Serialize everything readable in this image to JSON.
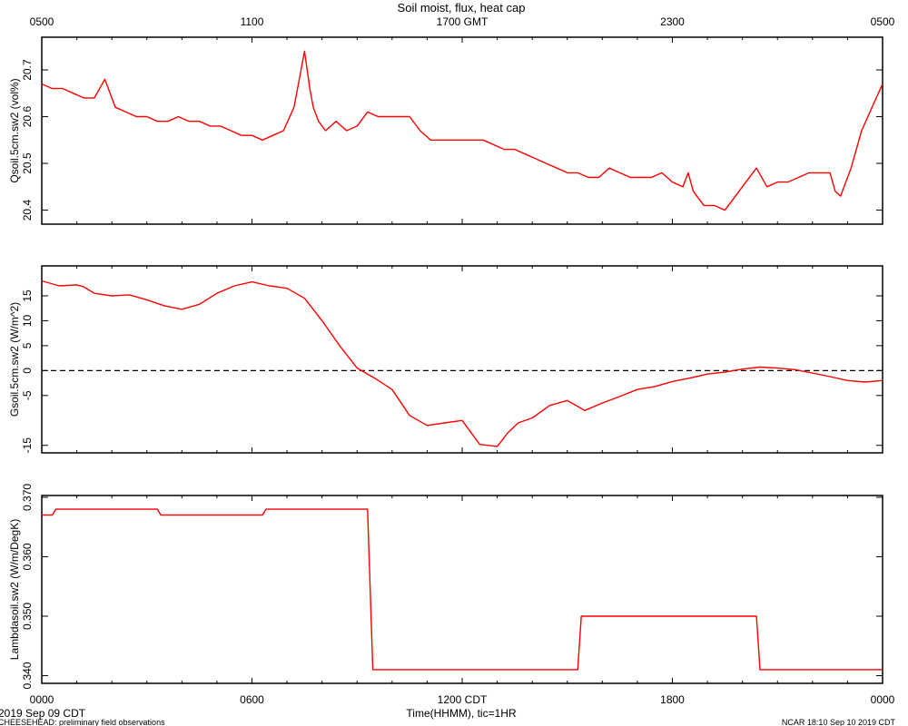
{
  "title": "Soil moist, flux, heat cap",
  "x_axis_top": {
    "tick_labels": [
      "0500",
      "1100",
      "1700 GMT",
      "2300",
      "0500"
    ]
  },
  "x_axis_bottom": {
    "tick_labels": [
      "0000",
      "0600",
      "1200 CDT",
      "1800",
      "0000"
    ],
    "label": "Time(HHMM), tic=1HR"
  },
  "footer": {
    "date": "2019 Sep 09 CDT",
    "left": "CHEESEHEAD: preliminary field observations",
    "right": "NCAR 18:10 Sep 10 2019 CDT"
  },
  "colors": {
    "series": "#ff0000",
    "axis": "#000000",
    "zero_line": "#000000"
  },
  "chart_data": [
    {
      "type": "line",
      "ylabel": "Qsoil.5cm.sw2 (vol%)",
      "ylim": [
        20.37,
        20.77
      ],
      "yticks": [
        20.4,
        20.5,
        20.6,
        20.7
      ],
      "ytick_labels": [
        "20.4",
        "20.5",
        "20.6",
        "20.7"
      ],
      "x_unit": "hours since 00:00 CDT",
      "x": [
        0,
        0.3,
        0.6,
        0.9,
        1.2,
        1.5,
        1.8,
        2.1,
        2.4,
        2.7,
        3.0,
        3.3,
        3.6,
        3.9,
        4.2,
        4.5,
        4.8,
        5.1,
        5.4,
        5.7,
        6.0,
        6.3,
        6.6,
        6.9,
        7.2,
        7.5,
        7.65,
        7.75,
        7.9,
        8.1,
        8.4,
        8.7,
        9.0,
        9.3,
        9.6,
        9.9,
        10.2,
        10.5,
        10.8,
        11.1,
        11.4,
        11.7,
        12.0,
        12.3,
        12.6,
        12.9,
        13.2,
        13.5,
        13.8,
        14.1,
        14.4,
        14.7,
        15.0,
        15.3,
        15.6,
        15.9,
        16.2,
        16.5,
        16.8,
        17.1,
        17.4,
        17.7,
        18.0,
        18.3,
        18.45,
        18.6,
        18.9,
        19.2,
        19.5,
        19.8,
        20.1,
        20.4,
        20.7,
        21.0,
        21.3,
        21.6,
        21.9,
        22.2,
        22.5,
        22.65,
        22.8,
        23.1,
        23.4,
        23.7,
        24.0
      ],
      "y": [
        20.67,
        20.66,
        20.66,
        20.65,
        20.64,
        20.64,
        20.68,
        20.62,
        20.61,
        20.6,
        20.6,
        20.59,
        20.59,
        20.6,
        20.59,
        20.59,
        20.58,
        20.58,
        20.57,
        20.56,
        20.56,
        20.55,
        20.56,
        20.57,
        20.62,
        20.74,
        20.66,
        20.62,
        20.59,
        20.57,
        20.59,
        20.57,
        20.58,
        20.61,
        20.6,
        20.6,
        20.6,
        20.6,
        20.57,
        20.55,
        20.55,
        20.55,
        20.55,
        20.55,
        20.55,
        20.54,
        20.53,
        20.53,
        20.52,
        20.51,
        20.5,
        20.49,
        20.48,
        20.48,
        20.47,
        20.47,
        20.49,
        20.48,
        20.47,
        20.47,
        20.47,
        20.48,
        20.46,
        20.45,
        20.48,
        20.44,
        20.41,
        20.41,
        20.4,
        20.43,
        20.46,
        20.49,
        20.45,
        20.46,
        20.46,
        20.47,
        20.48,
        20.48,
        20.48,
        20.44,
        20.43,
        20.49,
        20.57,
        20.62,
        20.67
      ]
    },
    {
      "type": "line",
      "ylabel": "Gsoil.5cm.sw2 (W/m^2)",
      "ylim": [
        -16.5,
        21
      ],
      "yticks": [
        -15,
        -5,
        0,
        5,
        10,
        15
      ],
      "ytick_labels": [
        "-15",
        "-5",
        "0",
        "5",
        "10",
        "15"
      ],
      "reference_line": {
        "y": 0,
        "style": "dashed"
      },
      "x_unit": "hours since 00:00 CDT",
      "x": [
        0,
        0.5,
        1.0,
        1.2,
        1.5,
        2.0,
        2.5,
        3.0,
        3.5,
        4.0,
        4.5,
        5.0,
        5.5,
        6.0,
        6.5,
        6.8,
        7.0,
        7.5,
        8.0,
        8.5,
        9.0,
        9.5,
        10.0,
        10.5,
        11.0,
        11.5,
        12.0,
        12.5,
        13.0,
        13.3,
        13.6,
        14.0,
        14.5,
        15.0,
        15.5,
        16.0,
        16.5,
        17.0,
        17.5,
        18.0,
        18.5,
        19.0,
        19.5,
        20.0,
        20.5,
        21.0,
        21.5,
        22.0,
        22.5,
        23.0,
        23.5,
        24.0
      ],
      "y": [
        18.0,
        17.0,
        17.2,
        16.8,
        15.5,
        15.0,
        15.2,
        14.2,
        13.0,
        12.3,
        13.3,
        15.5,
        17.0,
        17.8,
        17.0,
        16.7,
        16.5,
        14.5,
        10.0,
        5.0,
        0.5,
        -1.5,
        -3.8,
        -9.0,
        -11.0,
        -10.5,
        -10.0,
        -14.8,
        -15.2,
        -12.5,
        -10.5,
        -9.5,
        -7.0,
        -6.0,
        -8.0,
        -6.5,
        -5.2,
        -3.8,
        -3.2,
        -2.2,
        -1.5,
        -0.7,
        -0.3,
        0.3,
        0.7,
        0.5,
        0.2,
        -0.5,
        -1.2,
        -2.0,
        -2.3,
        -2.0
      ]
    },
    {
      "type": "line",
      "ylabel": "Lambdasoil.sw2 (W/m/DegK)",
      "ylim": [
        0.3387,
        0.3703
      ],
      "yticks": [
        0.34,
        0.35,
        0.36,
        0.37
      ],
      "ytick_labels": [
        "0.340",
        "0.350",
        "0.360",
        "0.370"
      ],
      "x_unit": "hours since 00:00 CDT",
      "x": [
        0,
        0.3,
        0.4,
        3.3,
        3.4,
        6.3,
        6.4,
        9.3,
        9.45,
        15.3,
        15.4,
        20.4,
        20.5,
        24.0
      ],
      "y": [
        0.367,
        0.367,
        0.368,
        0.368,
        0.367,
        0.367,
        0.368,
        0.368,
        0.341,
        0.341,
        0.35,
        0.35,
        0.341,
        0.341
      ]
    }
  ]
}
